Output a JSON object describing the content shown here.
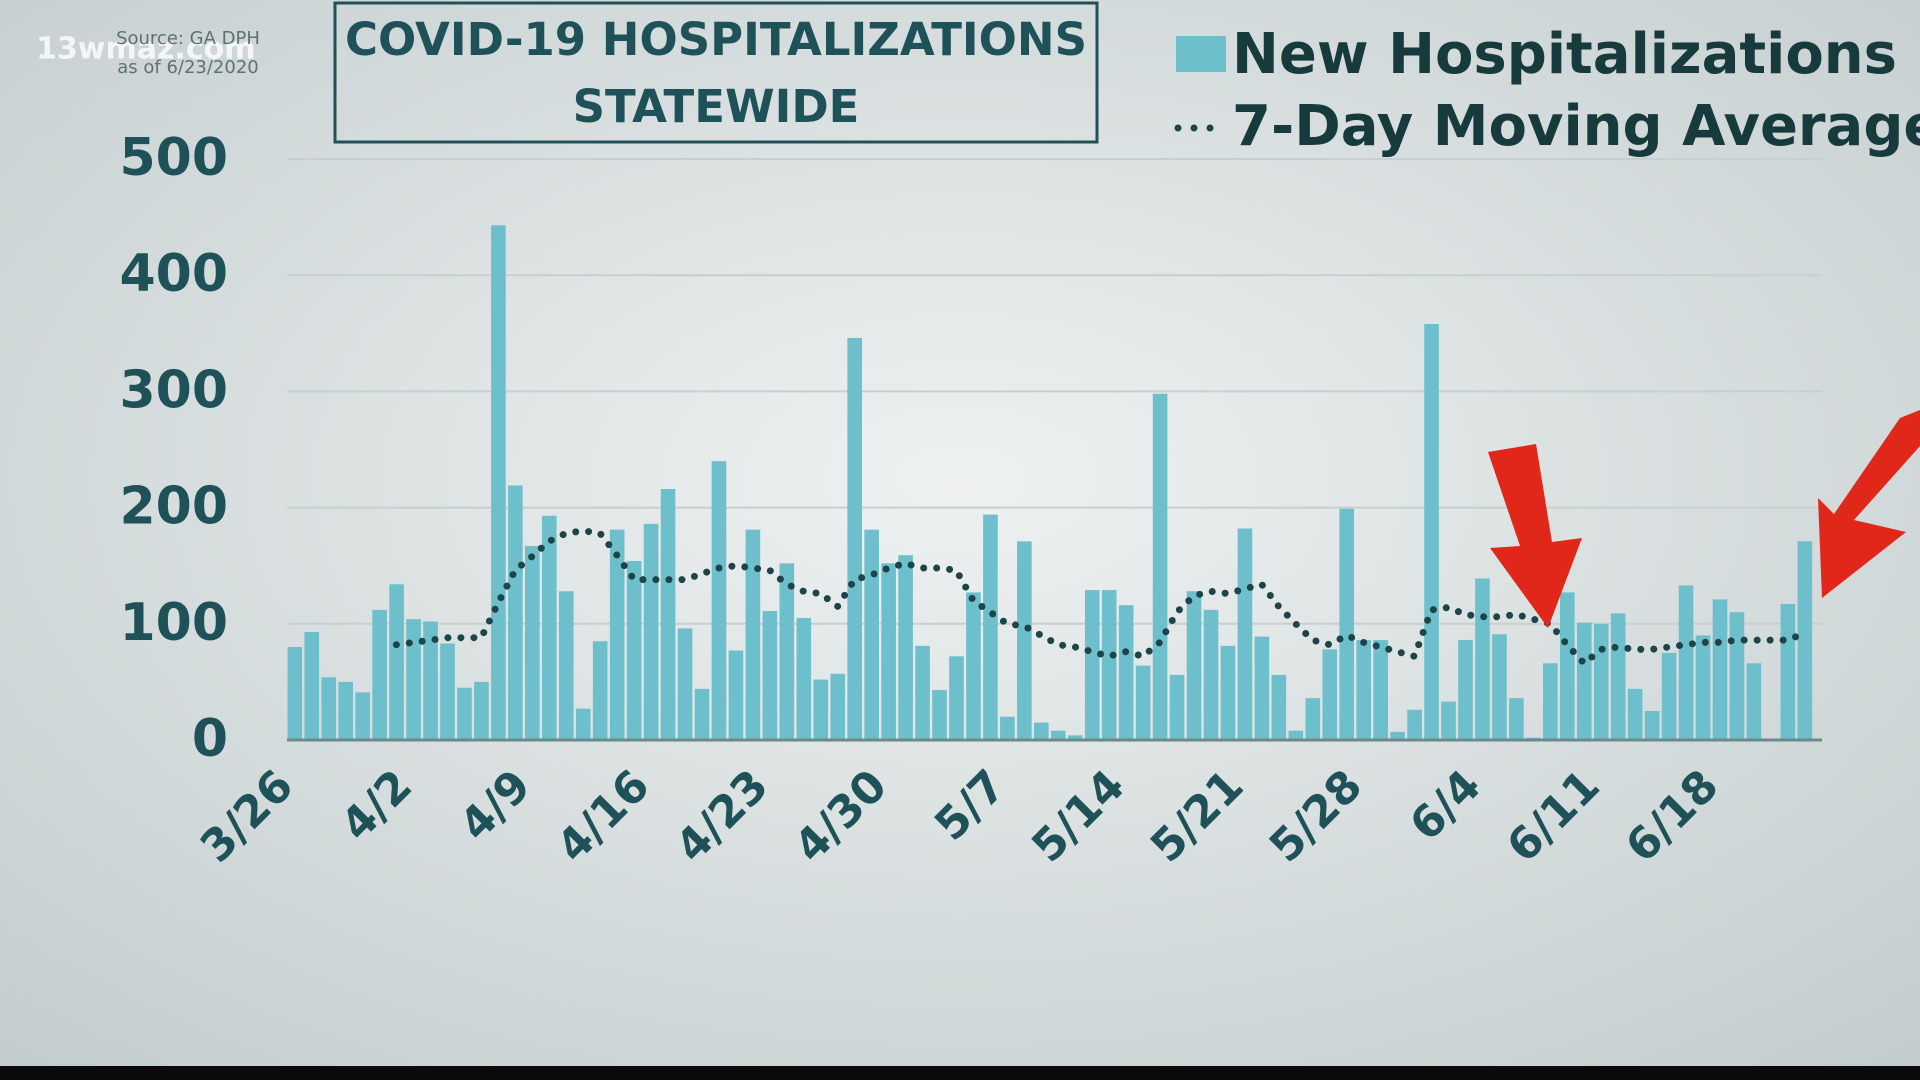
{
  "watermark": "13wmaz.com",
  "source": [
    "Source: GA DPH",
    "as of 6/23/2020"
  ],
  "chart_data": {
    "type": "bar",
    "title": [
      "COVID-19 HOSPITALIZATIONS",
      "STATEWIDE"
    ],
    "categories": [
      "3/26",
      null,
      null,
      null,
      null,
      null,
      null,
      "4/2",
      null,
      null,
      null,
      null,
      null,
      null,
      "4/9",
      null,
      null,
      null,
      null,
      null,
      null,
      "4/16",
      null,
      null,
      null,
      null,
      null,
      null,
      "4/23",
      null,
      null,
      null,
      null,
      null,
      null,
      "4/30",
      null,
      null,
      null,
      null,
      null,
      null,
      "5/7",
      null,
      null,
      null,
      null,
      null,
      null,
      "5/14",
      null,
      null,
      null,
      null,
      null,
      null,
      "5/21",
      null,
      null,
      null,
      null,
      null,
      null,
      "5/28",
      null,
      null,
      null,
      null,
      null,
      null,
      "6/4",
      null,
      null,
      null,
      null,
      null,
      null,
      "6/11",
      null,
      null,
      null,
      null,
      null,
      null,
      "6/18",
      null,
      null,
      null,
      null,
      null
    ],
    "series": [
      {
        "name": "New Hospitalizations",
        "type": "bar",
        "color": "#6cbfcb",
        "values": [
          80,
          93,
          54,
          50,
          41,
          112,
          134,
          104,
          102,
          83,
          45,
          50,
          443,
          219,
          167,
          193,
          128,
          27,
          85,
          181,
          154,
          186,
          216,
          96,
          44,
          240,
          77,
          181,
          111,
          152,
          105,
          52,
          57,
          346,
          181,
          152,
          159,
          81,
          43,
          72,
          127,
          194,
          20,
          171,
          15,
          8,
          4,
          129,
          129,
          116,
          64,
          298,
          56,
          128,
          112,
          81,
          182,
          89,
          56,
          8,
          36,
          78,
          199,
          86,
          86,
          7,
          26,
          358,
          33,
          86,
          139,
          91,
          36,
          2,
          66,
          127,
          101,
          100,
          109,
          44,
          25,
          75,
          133,
          90,
          121,
          110,
          66,
          0,
          117,
          171
        ]
      },
      {
        "name": "7-Day Moving Average",
        "type": "line",
        "color": "#1d4448",
        "values": [
          null,
          null,
          null,
          null,
          null,
          null,
          82,
          84,
          86,
          88,
          88,
          88,
          118,
          146,
          158,
          171,
          178,
          180,
          178,
          159,
          138,
          138,
          138,
          138,
          143,
          148,
          150,
          148,
          146,
          134,
          128,
          126,
          115,
          138,
          142,
          148,
          152,
          148,
          148,
          146,
          120,
          110,
          100,
          98,
          90,
          82,
          80,
          76,
          72,
          76,
          72,
          84,
          110,
          124,
          128,
          126,
          130,
          134,
          115,
          100,
          86,
          82,
          90,
          84,
          80,
          76,
          72,
          112,
          114,
          108,
          106,
          106,
          108,
          104,
          100,
          82,
          66,
          78,
          80,
          78,
          78,
          80,
          82,
          84,
          84,
          86,
          86,
          86,
          86,
          92
        ]
      }
    ],
    "ylim": [
      0,
      500
    ],
    "yticks": [
      0,
      100,
      200,
      300,
      400,
      500
    ],
    "grid": true
  }
}
